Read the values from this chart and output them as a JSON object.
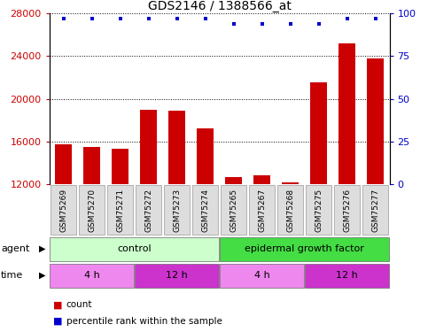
{
  "title": "GDS2146 / 1388566_at",
  "samples": [
    "GSM75269",
    "GSM75270",
    "GSM75271",
    "GSM75272",
    "GSM75273",
    "GSM75274",
    "GSM75265",
    "GSM75267",
    "GSM75268",
    "GSM75275",
    "GSM75276",
    "GSM75277"
  ],
  "counts": [
    15700,
    15500,
    15300,
    19000,
    18900,
    17200,
    12700,
    12800,
    12200,
    21500,
    25200,
    23800
  ],
  "percentile": [
    97,
    97,
    97,
    97,
    97,
    97,
    94,
    94,
    94,
    94,
    97,
    97
  ],
  "ylim_left": [
    12000,
    28000
  ],
  "yticks_left": [
    12000,
    16000,
    20000,
    24000,
    28000
  ],
  "ylim_right": [
    0,
    100
  ],
  "yticks_right": [
    0,
    25,
    50,
    75,
    100
  ],
  "bar_color": "#cc0000",
  "dot_color": "#0000cc",
  "bar_width": 0.6,
  "agent_groups": [
    {
      "label": "control",
      "start": 0,
      "end": 6,
      "color": "#ccffcc"
    },
    {
      "label": "epidermal growth factor",
      "start": 6,
      "end": 12,
      "color": "#44dd44"
    }
  ],
  "time_groups": [
    {
      "label": "4 h",
      "start": 0,
      "end": 3,
      "color": "#ee88ee"
    },
    {
      "label": "12 h",
      "start": 3,
      "end": 6,
      "color": "#cc33cc"
    },
    {
      "label": "4 h",
      "start": 6,
      "end": 9,
      "color": "#ee88ee"
    },
    {
      "label": "12 h",
      "start": 9,
      "end": 12,
      "color": "#cc33cc"
    }
  ],
  "legend_items": [
    {
      "label": "count",
      "color": "#cc0000"
    },
    {
      "label": "percentile rank within the sample",
      "color": "#0000cc"
    }
  ],
  "title_fontsize": 10,
  "tick_fontsize": 8,
  "sample_fontsize": 6.5,
  "label_fontsize": 8,
  "row_label_fontsize": 8
}
